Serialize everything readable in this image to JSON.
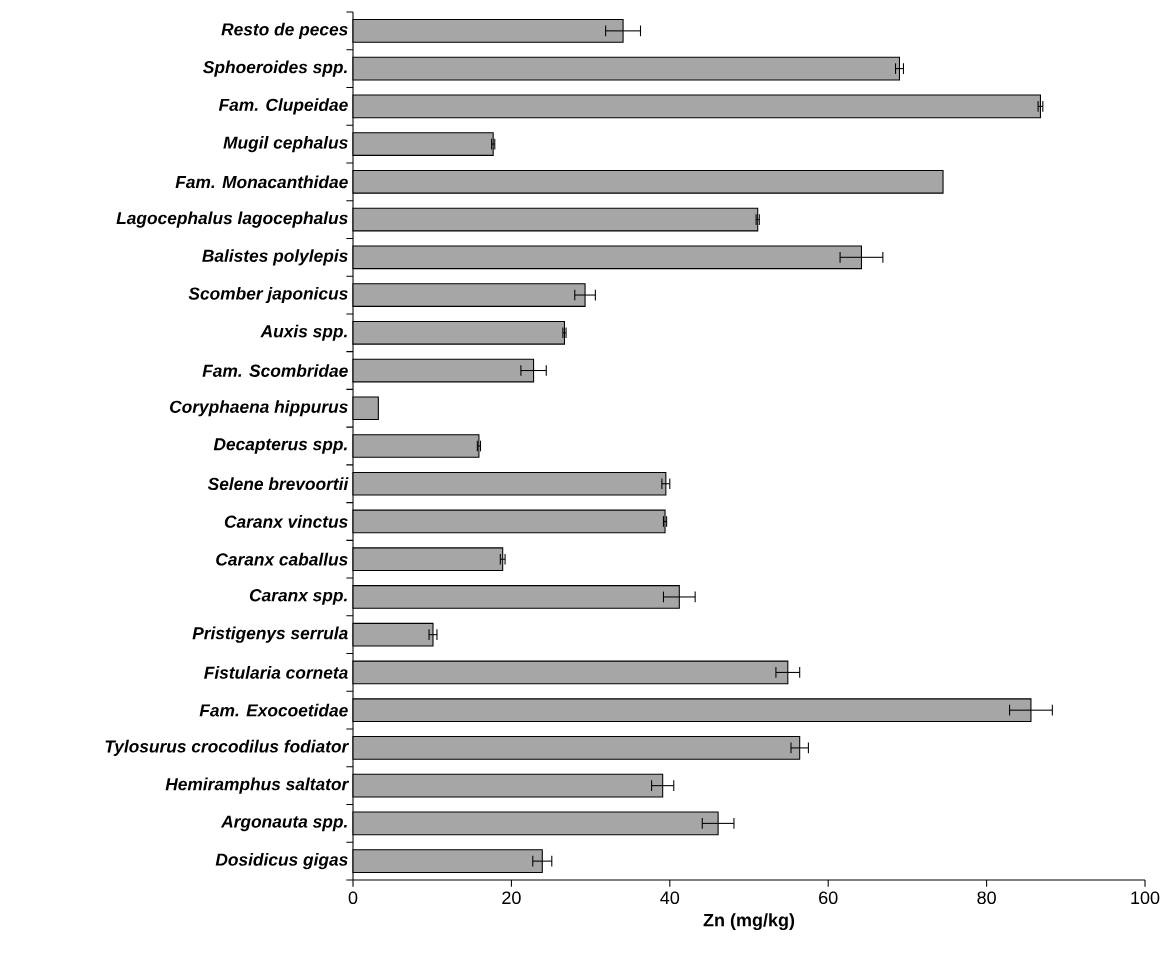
{
  "chart_data": {
    "type": "bar",
    "orientation": "horizontal",
    "xlabel": "Zn (mg/kg)",
    "categories": [
      "Resto de peces",
      "Sphoeroides spp.",
      "Fam. Clupeidae",
      "Mugil cephalus",
      "Fam. Monacanthidae",
      "Lagocephalus lagocephalus",
      "Balistes polylepis",
      "Scomber japonicus",
      "Auxis spp.",
      "Fam. Scombridae",
      "Coryphaena hippurus",
      "Decapterus spp.",
      "Selene brevoortii",
      "Caranx vinctus",
      "Caranx caballus",
      "Caranx spp.",
      "Pristigenys serrula",
      "Fistularia corneta",
      "Fam. Exocoetidae",
      "Tylosurus crocodilus fodiator",
      "Hemiramphus saltator",
      "Argonauta spp.",
      "Dosidicus gigas"
    ],
    "values": [
      34.1,
      69.0,
      86.8,
      17.7,
      74.5,
      51.1,
      64.2,
      29.3,
      26.7,
      22.8,
      3.2,
      15.9,
      39.5,
      39.4,
      18.9,
      41.2,
      10.1,
      54.9,
      85.6,
      56.4,
      39.1,
      46.1,
      23.9
    ],
    "errors": [
      2.2,
      0.5,
      0.3,
      0.2,
      null,
      0.2,
      2.7,
      1.3,
      0.2,
      1.6,
      null,
      0.2,
      0.5,
      0.2,
      0.3,
      2.0,
      0.5,
      1.5,
      2.7,
      1.1,
      1.4,
      2.0,
      1.2
    ],
    "color": "#a6a6a6",
    "xlim": [
      0,
      100
    ],
    "xticks": [
      0,
      20,
      40,
      60,
      80,
      100
    ]
  }
}
